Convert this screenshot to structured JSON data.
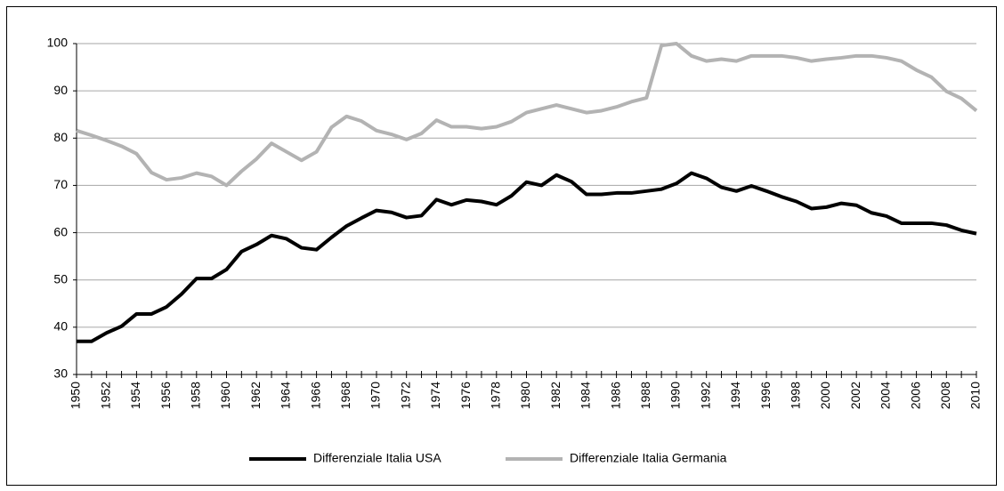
{
  "chart_data": {
    "type": "line",
    "categories": [
      "1950",
      null,
      "1952",
      null,
      "1954",
      null,
      "1956",
      null,
      "1958",
      null,
      "1960",
      null,
      "1962",
      null,
      "1964",
      null,
      "1966",
      null,
      "1968",
      null,
      "1970",
      null,
      "1972",
      null,
      "1974",
      null,
      "1976",
      null,
      "1978",
      null,
      "1980",
      null,
      "1982",
      null,
      "1984",
      null,
      "1986",
      null,
      "1988",
      null,
      "1990",
      null,
      "1992",
      null,
      "1994",
      null,
      "1996",
      null,
      "1998",
      null,
      "2000",
      null,
      "2002",
      null,
      "2004",
      null,
      "2006",
      null,
      "2008",
      null,
      "2010"
    ],
    "series": [
      {
        "name": "Differenziale Italia USA",
        "color": "#000000",
        "values": [
          37,
          37,
          38.8,
          40.2,
          42.8,
          42.8,
          44.3,
          47,
          50.3,
          50.3,
          52.2,
          56,
          57.5,
          59.4,
          58.7,
          56.8,
          56.4,
          59,
          61.4,
          63.1,
          64.7,
          64.3,
          63.2,
          63.6,
          67,
          65.9,
          66.9,
          66.6,
          65.9,
          67.8,
          70.7,
          70,
          72.2,
          70.8,
          68.1,
          68.1,
          68.4,
          68.4,
          68.8,
          69.2,
          70.4,
          72.6,
          71.5,
          69.6,
          68.8,
          69.9,
          68.8,
          67.6,
          66.6,
          65.1,
          65.4,
          66.2,
          65.8,
          64.2,
          63.5,
          62,
          62,
          62,
          61.6,
          60.5,
          59.8
        ]
      },
      {
        "name": "Differenziale Italia Germania",
        "color": "#b3b3b3",
        "values": [
          81.6,
          80.6,
          79.5,
          78.3,
          76.7,
          72.7,
          71.2,
          71.6,
          72.6,
          71.9,
          70,
          73,
          75.6,
          78.9,
          77.1,
          75.3,
          77.1,
          82.3,
          84.6,
          83.6,
          81.6,
          80.8,
          79.7,
          81,
          83.8,
          82.4,
          82.4,
          82,
          82.4,
          83.5,
          85.4,
          86.2,
          87,
          86.2,
          85.4,
          85.8,
          86.6,
          87.7,
          88.5,
          99.6,
          100,
          97.4,
          96.3,
          96.7,
          96.3,
          97.4,
          97.4,
          97.4,
          97,
          96.3,
          96.7,
          97,
          97.4,
          97.4,
          97,
          96.3,
          94.4,
          92.9,
          89.9,
          88.4,
          85.8
        ]
      }
    ],
    "ylim": [
      30,
      100
    ],
    "yticks": [
      30,
      40,
      50,
      60,
      70,
      80,
      90,
      100
    ],
    "grid": true,
    "legend": "bottom"
  }
}
